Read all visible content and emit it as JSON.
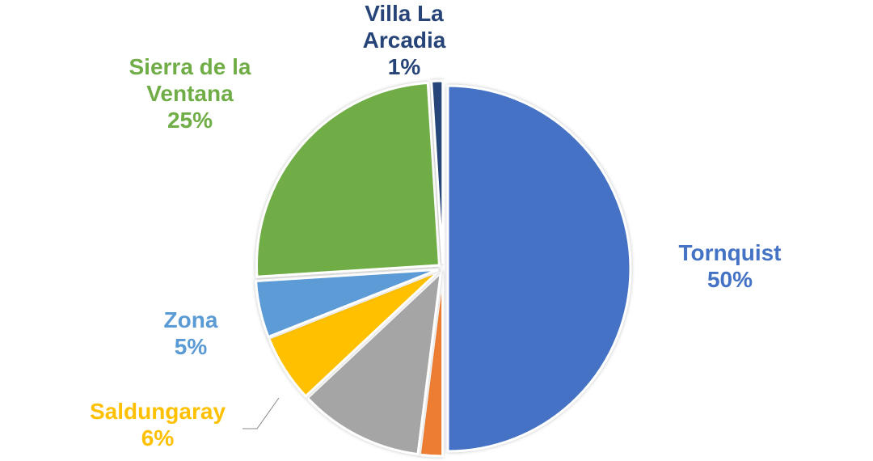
{
  "chart_data": {
    "type": "pie",
    "title": "",
    "start_angle_deg": 0,
    "direction": "clockwise",
    "slices": [
      {
        "name": "Tornquist",
        "value": 50,
        "label": "50%",
        "color": "#4472C4"
      },
      {
        "name": "",
        "value": 2,
        "label": "",
        "color": "#ED7D31"
      },
      {
        "name": "",
        "value": 11,
        "label": "",
        "color": "#A5A5A5"
      },
      {
        "name": "Saldungaray",
        "value": 6,
        "label": "6%",
        "color": "#FFC000"
      },
      {
        "name": "Zona",
        "value": 5,
        "label": "5%",
        "color": "#5B9BD5"
      },
      {
        "name": "Sierra de la Ventana",
        "value": 25,
        "label": "25%",
        "color": "#70AD47"
      },
      {
        "name": "Villa La Arcadia",
        "value": 1,
        "label": "1%",
        "color": "#264478"
      }
    ]
  }
}
